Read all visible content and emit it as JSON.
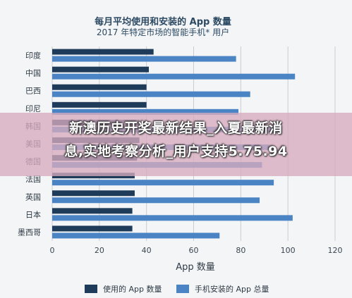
{
  "chart_data": {
    "type": "bar",
    "orientation": "horizontal",
    "title": "每月平均使用和安装的 App 数量",
    "subtitle": "2017 年特定市场的智能手机* 用户",
    "categories": [
      "印度",
      "中国",
      "巴西",
      "印尼",
      "韩国",
      "美国",
      "德国",
      "法国",
      "英国",
      "日本",
      "墨西哥"
    ],
    "series": [
      {
        "name": "使用的 App 数量",
        "color": "#1f3b5a",
        "values": [
          43,
          41,
          40,
          40,
          37,
          37,
          36,
          35,
          35,
          34,
          34
        ]
      },
      {
        "name": "手机安装的 App 总量",
        "color": "#4a84c4",
        "values": [
          78,
          103,
          84,
          79,
          96,
          92,
          89,
          94,
          88,
          102,
          71
        ]
      }
    ],
    "xlabel": "App 数量",
    "xlim": [
      0,
      120
    ],
    "xticks": [
      0,
      20,
      40,
      60,
      80,
      100,
      120
    ],
    "grid": true,
    "legend_position": "bottom"
  },
  "overlay": {
    "line1": "新澳历史开奖最新结果_入夏最新消",
    "line2": "息,实地考察分析_用户支持5.75.94"
  }
}
